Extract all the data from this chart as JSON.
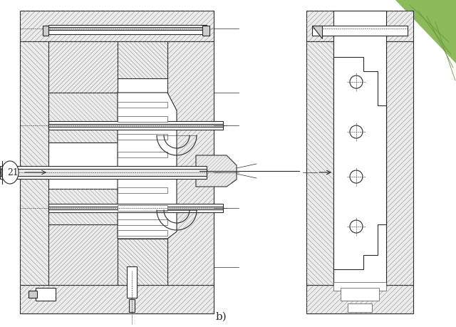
{
  "bg_color": "#ffffff",
  "line_color": "#2a2a2a",
  "label_21": "21",
  "label_b": "b)",
  "fig_width": 6.4,
  "fig_height": 4.59,
  "dpi": 100
}
